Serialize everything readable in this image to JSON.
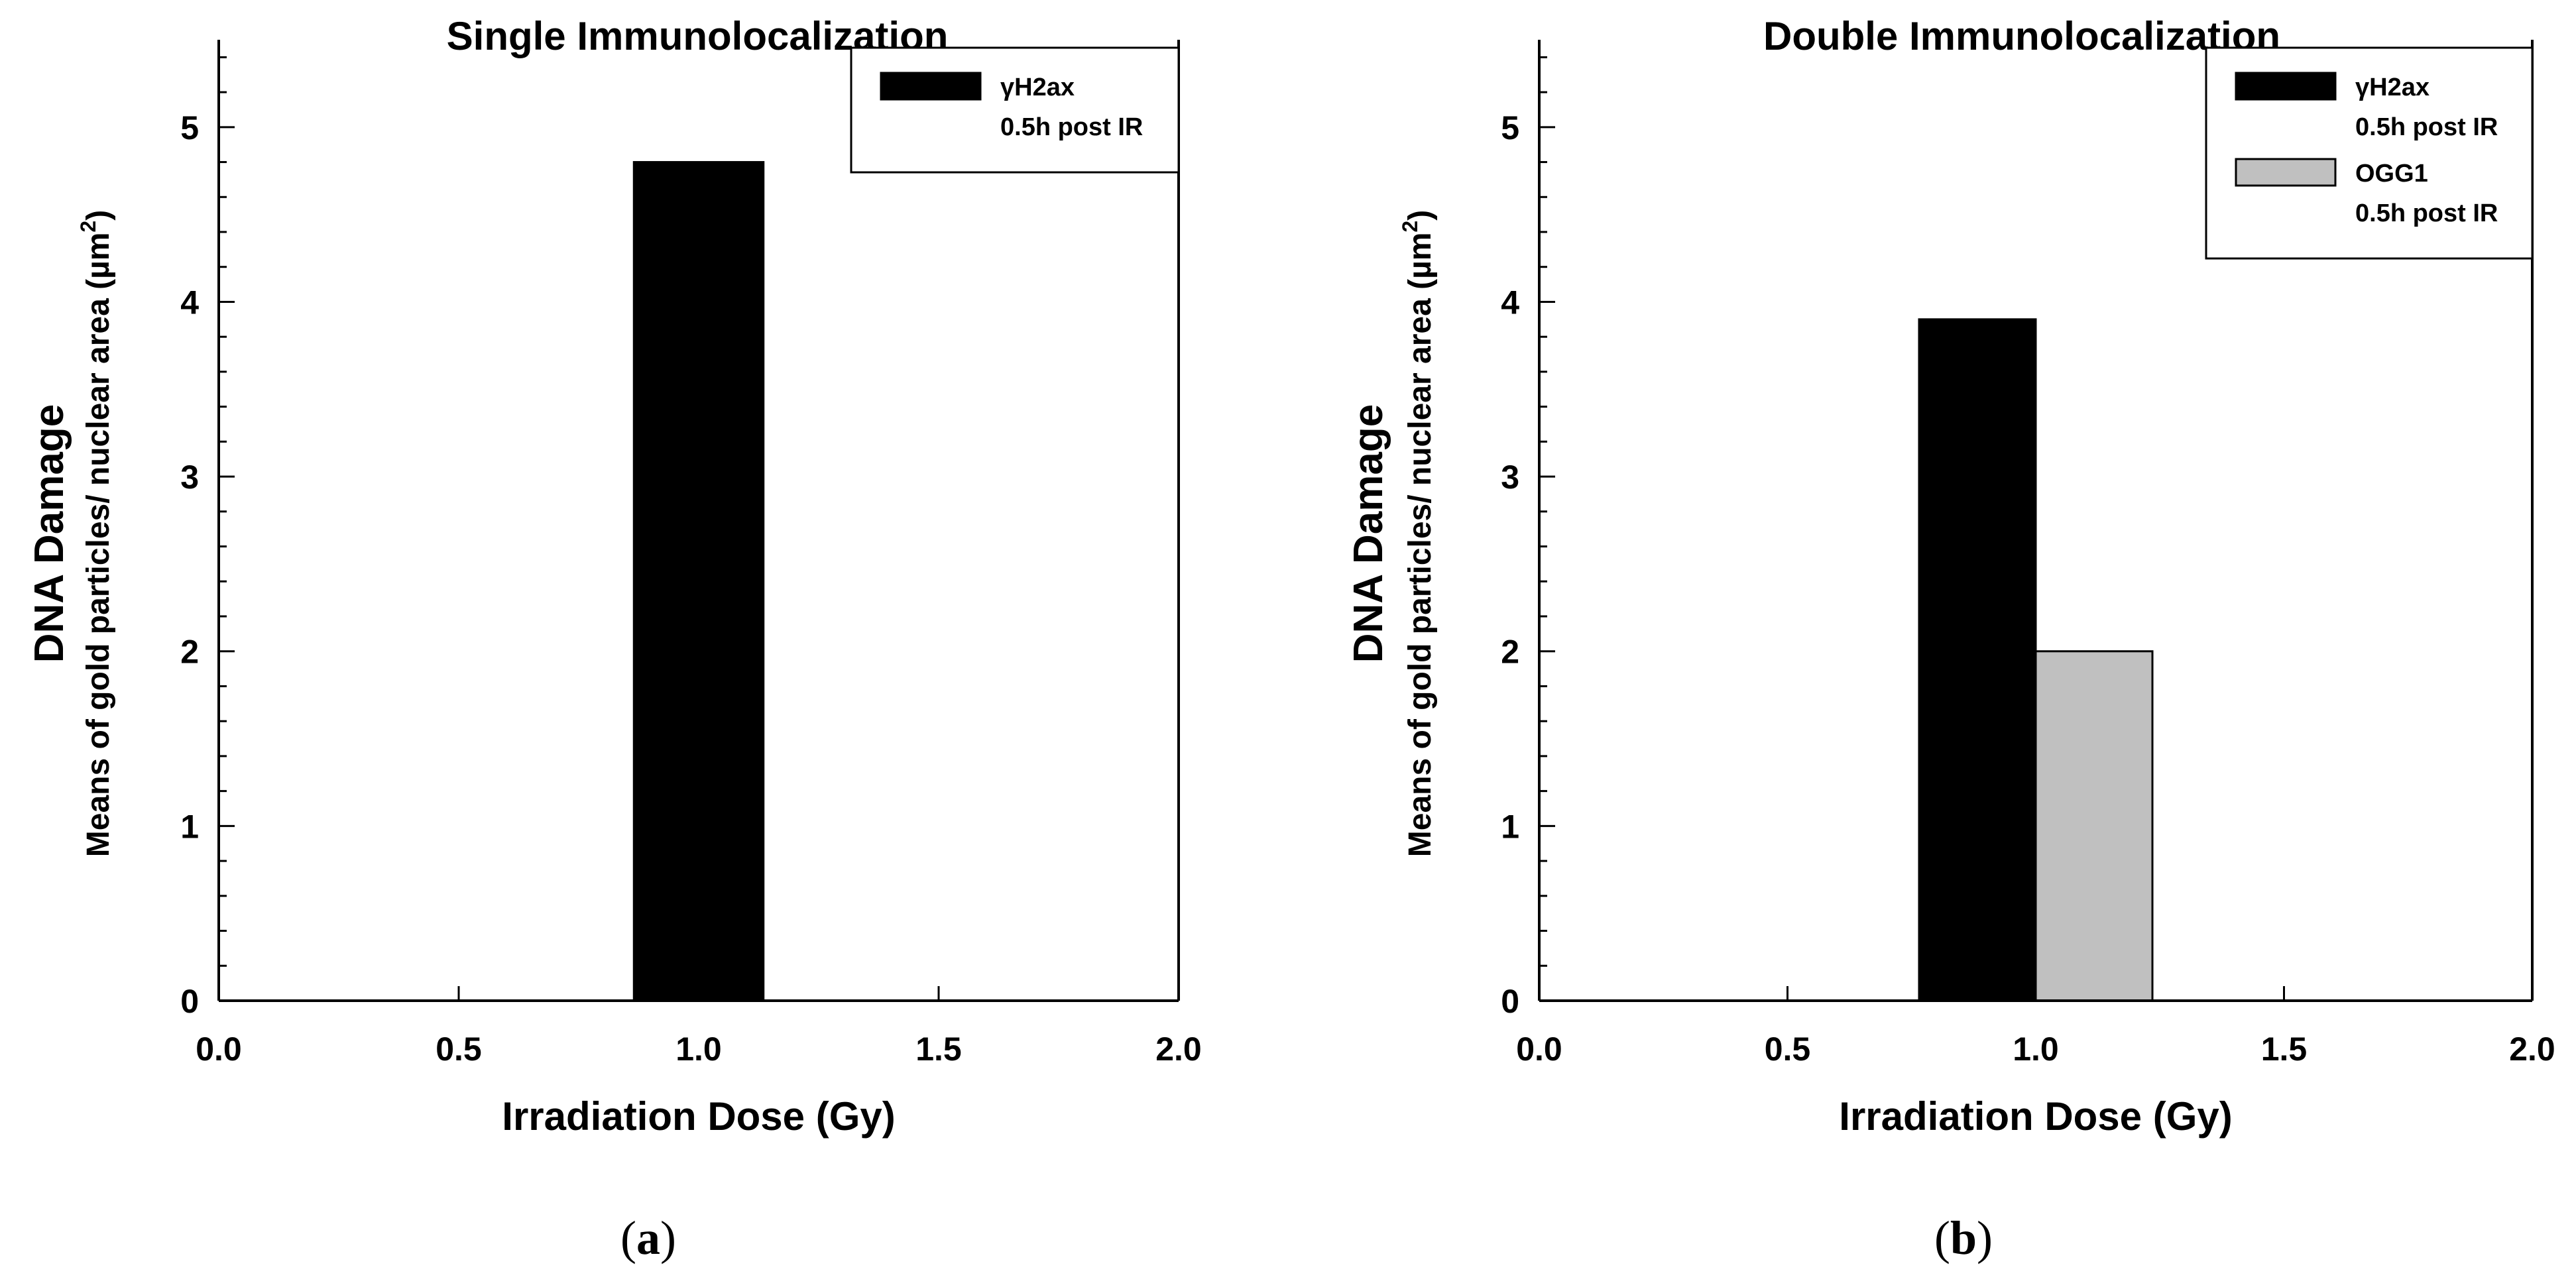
{
  "figure": {
    "panel_labels": [
      {
        "open": "(",
        "letter": "a",
        "close": ")"
      },
      {
        "open": "(",
        "letter": "b",
        "close": ")"
      }
    ]
  },
  "chart_data": [
    {
      "type": "bar",
      "title": "Single Immunolocalization",
      "xlabel": "Irradiation Dose (Gy)",
      "ylabel_main": "DNA Damage",
      "ylabel_sub": "Means of gold particles/ nuclear area (µm",
      "ylabel_sup": "2",
      "ylabel_close": ")",
      "xlim": [
        0,
        2
      ],
      "ylim": [
        0,
        5.5
      ],
      "xticks": [
        0,
        0.5,
        1,
        1.5,
        2
      ],
      "xtick_labels": [
        "0.0",
        "0.5",
        "1.0",
        "1.5",
        "2.0"
      ],
      "yticks": [
        0,
        1,
        2,
        3,
        4,
        5
      ],
      "ytick_labels": [
        "0",
        "1",
        "2",
        "3",
        "4",
        "5"
      ],
      "y_minor_step": 0.2,
      "series": [
        {
          "name": "γH2ax",
          "sub": "0.5h post IR",
          "color": "#000000",
          "x": [
            1.0
          ],
          "values": [
            4.8
          ],
          "bar_x_start": 0.865,
          "bar_x_end": 1.135
        }
      ]
    },
    {
      "type": "bar",
      "title": "Double Immunolocalization",
      "xlabel": "Irradiation Dose (Gy)",
      "ylabel_main": "DNA Damage",
      "ylabel_sub": "Means of gold particles/ nuclear area (µm",
      "ylabel_sup": "2",
      "ylabel_close": ")",
      "xlim": [
        0,
        2
      ],
      "ylim": [
        0,
        5.5
      ],
      "xticks": [
        0,
        0.5,
        1,
        1.5,
        2
      ],
      "xtick_labels": [
        "0.0",
        "0.5",
        "1.0",
        "1.5",
        "2.0"
      ],
      "yticks": [
        0,
        1,
        2,
        3,
        4,
        5
      ],
      "ytick_labels": [
        "0",
        "1",
        "2",
        "3",
        "4",
        "5"
      ],
      "y_minor_step": 0.2,
      "series": [
        {
          "name": "γH2ax",
          "sub": "0.5h post IR",
          "color": "#000000",
          "x": [
            1.0
          ],
          "values": [
            3.9
          ],
          "bar_x_start": 0.765,
          "bar_x_end": 1.0
        },
        {
          "name": "OGG1",
          "sub": "0.5h post IR",
          "color": "#c0c0c0",
          "x": [
            1.0
          ],
          "values": [
            2.0
          ],
          "bar_x_start": 1.0,
          "bar_x_end": 1.235
        }
      ]
    }
  ]
}
